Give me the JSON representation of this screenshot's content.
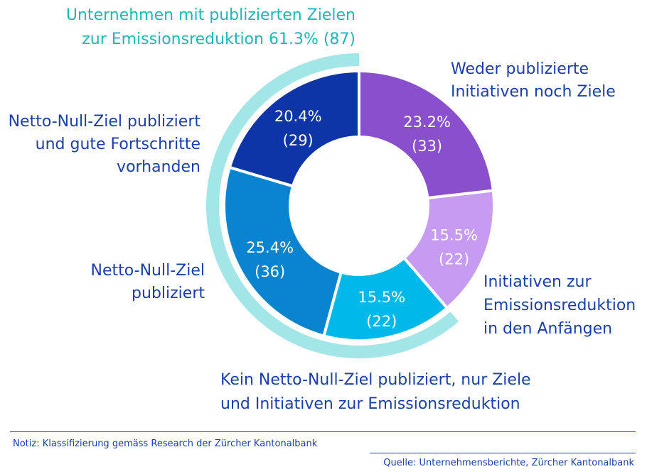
{
  "chart_data": {
    "type": "pie",
    "style": "donut",
    "slices": [
      {
        "label": "Weder publizierte Initiativen noch Ziele",
        "percent": 23.2,
        "count": 33,
        "color": "#8a4fcc"
      },
      {
        "label": "Initiativen zur Emissionsreduktion in den Anfängen",
        "percent": 15.5,
        "count": 22,
        "color": "#c89bf3"
      },
      {
        "label": "Kein Netto-Null-Ziel publiziert, nur Ziele und Initiativen zur Emissionsreduktion",
        "percent": 15.5,
        "count": 22,
        "color": "#00b8ea"
      },
      {
        "label": "Netto-Null-Ziel publiziert",
        "percent": 25.4,
        "count": 36,
        "color": "#0a84cf"
      },
      {
        "label": "Netto-Null-Ziel publiziert und gute Fortschritte vorhanden",
        "percent": 20.4,
        "count": 29,
        "color": "#0d35a8"
      }
    ],
    "highlight_group": {
      "label": "Unternehmen mit publizierten Zielen zur Emissionsreduktion",
      "percent": 61.3,
      "count": 87,
      "color": "#a3e6e8"
    }
  },
  "labels": {
    "highlight_line1": "Unternehmen mit publizierten Zielen",
    "highlight_line2": "zur Emissionsreduktion 61.3% (87)",
    "s0_line1": "Weder publizierte",
    "s0_line2": "Initiativen noch Ziele",
    "s1_line1": "Initiativen zur",
    "s1_line2": "Emissionsreduktion",
    "s1_line3": "in den Anfängen",
    "s2_line1": "Kein Netto-Null-Ziel publiziert, nur Ziele",
    "s2_line2": "und Initiativen zur Emissionsreduktion",
    "s3_line1": "Netto-Null-Ziel",
    "s3_line2": "publiziert",
    "s4_line1": "Netto-Null-Ziel publiziert",
    "s4_line2": "und gute Fortschritte",
    "s4_line3": "vorhanden"
  },
  "footer": {
    "note": "Notiz: Klassifizierung gemäss Research der Zürcher Kantonalbank",
    "source": "Quelle: Unternehmensberichte, Zürcher Kantonalbank"
  }
}
